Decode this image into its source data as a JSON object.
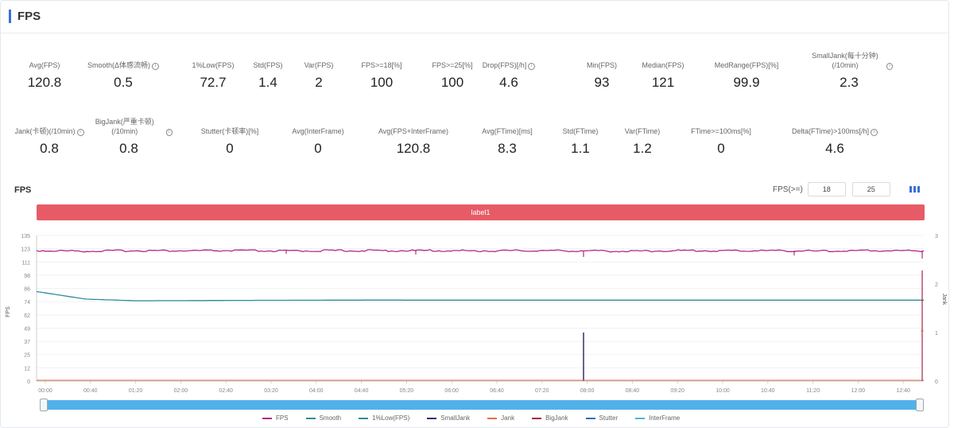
{
  "header": {
    "title": "FPS"
  },
  "metrics_row1": [
    {
      "label": "Avg(FPS)",
      "value": "120.8",
      "info": false
    },
    {
      "label": "Smooth(Δ体感流畅)",
      "value": "0.5",
      "info": true
    },
    {
      "label": "1%Low(FPS)",
      "value": "72.7",
      "info": false
    },
    {
      "label": "Std(FPS)",
      "value": "1.4",
      "info": false
    },
    {
      "label": "Var(FPS)",
      "value": "2",
      "info": false
    },
    {
      "label": "FPS>=18[%]",
      "value": "100",
      "info": false
    },
    {
      "label": "FPS>=25[%]",
      "value": "100",
      "info": false
    },
    {
      "label": "Drop(FPS)[/h]",
      "value": "4.6",
      "info": true
    },
    {
      "label": "Min(FPS)",
      "value": "93",
      "info": false
    },
    {
      "label": "Median(FPS)",
      "value": "121",
      "info": false
    },
    {
      "label": "MedRange(FPS)[%]",
      "value": "99.9",
      "info": false
    },
    {
      "label": "SmallJank(每十分钟)(/10min)",
      "value": "2.3",
      "info": true
    }
  ],
  "metrics_row2": [
    {
      "label": "Jank(卡顿)(/10min)",
      "value": "0.8",
      "info": true
    },
    {
      "label": "BigJank(严重卡顿)(/10min)",
      "value": "0.8",
      "info": true
    },
    {
      "label": "Stutter(卡顿率)[%]",
      "value": "0",
      "info": false
    },
    {
      "label": "Avg(InterFrame)",
      "value": "0",
      "info": false
    },
    {
      "label": "Avg(FPS+InterFrame)",
      "value": "120.8",
      "info": false
    },
    {
      "label": "Avg(FTime)[ms]",
      "value": "8.3",
      "info": false
    },
    {
      "label": "Std(FTime)",
      "value": "1.1",
      "info": false
    },
    {
      "label": "Var(FTime)",
      "value": "1.2",
      "info": false
    },
    {
      "label": "FTime>=100ms[%]",
      "value": "0",
      "info": false
    },
    {
      "label": "Delta(FTime)>100ms[/h]",
      "value": "4.6",
      "info": true
    }
  ],
  "chart": {
    "title": "FPS",
    "fps_filter_label": "FPS(>=)",
    "fps_filter_values": [
      "18",
      "25"
    ],
    "label_bar": "label1",
    "ylabel_left": "FPS",
    "ylabel_right": "Jank"
  },
  "chart_data": {
    "type": "line",
    "title": "FPS",
    "ylabel": "FPS",
    "y2label": "Jank",
    "y_ticks": [
      "0",
      "12",
      "25",
      "37",
      "49",
      "62",
      "74",
      "86",
      "98",
      "111",
      "123",
      "135"
    ],
    "y2_ticks": [
      "0",
      "1",
      "2",
      "3"
    ],
    "x_ticks": [
      "00:00",
      "00:40",
      "01:20",
      "02:00",
      "02:40",
      "03:20",
      "04:00",
      "04:40",
      "05:20",
      "06:00",
      "06:40",
      "07:20",
      "08:00",
      "08:40",
      "09:20",
      "10:00",
      "10:40",
      "11:20",
      "12:00",
      "12:40"
    ],
    "ylim": [
      0,
      135
    ],
    "y2lim": [
      0,
      3
    ],
    "series": [
      {
        "name": "FPS",
        "color": "#b02a86",
        "values": [
          121,
          120.5,
          121,
          120.8,
          121,
          120.6,
          121,
          120.9,
          121,
          120.7,
          121,
          120.8,
          120.4,
          121,
          120.8,
          121,
          120.5,
          121,
          120.8
        ]
      },
      {
        "name": "Smooth",
        "color": "#2c8f8f",
        "values": [
          0
        ]
      },
      {
        "name": "1%Low(FPS)",
        "color": "#2e8b9e",
        "values": [
          83,
          76,
          74.5,
          74.6,
          74.8,
          74.9,
          75,
          75.1,
          75,
          75,
          75,
          75,
          75,
          75,
          75,
          75,
          75,
          75,
          75
        ]
      },
      {
        "name": "SmallJank",
        "color": "#3b2a6e",
        "values": [
          0
        ]
      },
      {
        "name": "Jank",
        "color": "#e0704a",
        "values": [
          0
        ]
      },
      {
        "name": "BigJank",
        "color": "#a8244a",
        "values": [
          0
        ]
      },
      {
        "name": "Stutter",
        "color": "#2f6fb5",
        "values": [
          0
        ]
      },
      {
        "name": "InterFrame",
        "color": "#4ab8d0",
        "values": [
          0
        ]
      }
    ]
  },
  "legend": [
    "FPS",
    "Smooth",
    "1%Low(FPS)",
    "SmallJank",
    "Jank",
    "BigJank",
    "Stutter",
    "InterFrame"
  ],
  "colors": {
    "fps": "#b02a86",
    "low": "#2e8b9e",
    "label_bar": "#e75b67",
    "slider": "#52b0ea",
    "accent": "#3a6fd8"
  }
}
